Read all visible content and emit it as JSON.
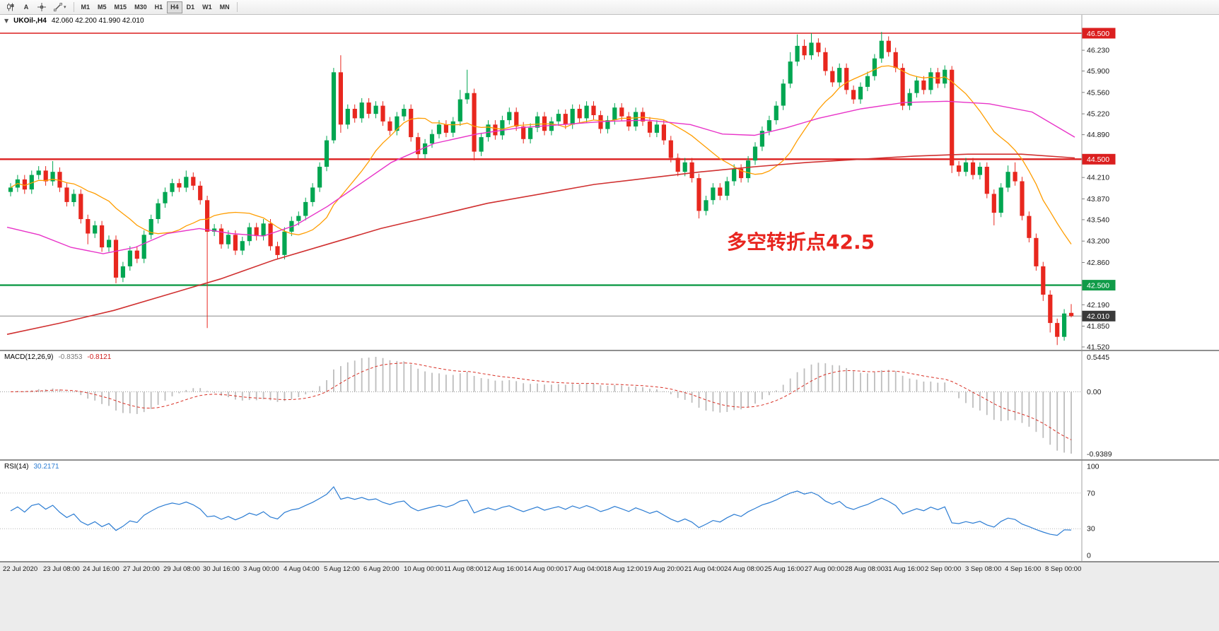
{
  "toolbar": {
    "text_tool_label": "A",
    "timeframes": [
      "M1",
      "M5",
      "M15",
      "M30",
      "H1",
      "H4",
      "D1",
      "W1",
      "MN"
    ],
    "active_timeframe": "H4"
  },
  "chart": {
    "symbol_label": "UKOil-,H4",
    "ohlc_label": "42.060 42.200 41.990 42.010",
    "price_axis": {
      "values": [
        46.23,
        45.9,
        45.56,
        45.22,
        44.89,
        44.21,
        43.87,
        43.54,
        43.2,
        42.86,
        42.19,
        41.85,
        41.52
      ],
      "badges": [
        {
          "price": 46.5,
          "label": "46.500",
          "bg": "#db1f1f"
        },
        {
          "price": 44.5,
          "label": "44.500",
          "bg": "#db1f1f"
        },
        {
          "price": 42.5,
          "label": "42.500",
          "bg": "#109b48"
        },
        {
          "price": 42.01,
          "label": "42.010",
          "bg": "#3a3a3a"
        }
      ]
    }
  },
  "macd": {
    "name": "MACD(12,26,9)",
    "main_value": "-0.8353",
    "signal_value": "-0.8121",
    "axis_max": "0.5445",
    "axis_zero": "0.00",
    "axis_min": "-0.9389"
  },
  "rsi": {
    "name": "RSI(14)",
    "value": "30.2171",
    "levels": [
      70,
      30
    ],
    "axis_labels": [
      100,
      70,
      30,
      0
    ]
  },
  "time_axis": {
    "labels": [
      "22 Jul 2020",
      "23 Jul 08:00",
      "24 Jul 16:00",
      "27 Jul 20:00",
      "29 Jul 08:00",
      "30 Jul 16:00",
      "3 Aug 00:00",
      "4 Aug 04:00",
      "5 Aug 12:00",
      "6 Aug 20:00",
      "10 Aug 00:00",
      "11 Aug 08:00",
      "12 Aug 16:00",
      "14 Aug 00:00",
      "17 Aug 04:00",
      "18 Aug 12:00",
      "19 Aug 20:00",
      "21 Aug 04:00",
      "24 Aug 08:00",
      "25 Aug 16:00",
      "27 Aug 00:00",
      "28 Aug 08:00",
      "31 Aug 16:00",
      "2 Sep 00:00",
      "3 Sep 08:00",
      "4 Sep 16:00",
      "8 Sep 00:00"
    ]
  },
  "chart_data": {
    "type": "candlestick",
    "symbol": "UKOil-",
    "timeframe": "H4",
    "title": "UKOil-,H4 42.060 42.200 41.990 42.010",
    "current": {
      "open": 42.06,
      "high": 42.2,
      "low": 41.99,
      "close": 42.01
    },
    "current_price": 42.01,
    "view": {
      "price_top": 46.792,
      "price_bottom": 41.475
    },
    "colors": {
      "up": "#00a651",
      "down": "#e8271e",
      "macd_hist": "#bdbdbd",
      "macd_signal": "#d93025",
      "rsi": "#2b7cd3"
    },
    "hlines": [
      {
        "price": 46.5,
        "color": "#db1f1f",
        "width": 1.6,
        "label": "46.500"
      },
      {
        "price": 44.5,
        "color": "#db1f1f",
        "width": 2.4,
        "label": "44.500"
      },
      {
        "price": 42.5,
        "color": "#109b48",
        "width": 2.4,
        "label": "42.500"
      }
    ],
    "annotation": {
      "text": "多空转折点42.5",
      "color": "#e8251f",
      "x_frac": 0.672,
      "price": 43.08,
      "font_size": 28
    },
    "ma": {
      "fast_period": 14,
      "fast_color": "#ff9d00",
      "mid_color": "#e833c8",
      "slow_color": "#d03030",
      "mid_points": [
        [
          0,
          43.42
        ],
        [
          0.03,
          43.3
        ],
        [
          0.06,
          43.1
        ],
        [
          0.09,
          43.0
        ],
        [
          0.12,
          43.1
        ],
        [
          0.15,
          43.32
        ],
        [
          0.18,
          43.4
        ],
        [
          0.21,
          43.32
        ],
        [
          0.24,
          43.28
        ],
        [
          0.27,
          43.45
        ],
        [
          0.3,
          43.75
        ],
        [
          0.33,
          44.1
        ],
        [
          0.36,
          44.45
        ],
        [
          0.4,
          44.75
        ],
        [
          0.44,
          44.9
        ],
        [
          0.48,
          45.0
        ],
        [
          0.52,
          45.05
        ],
        [
          0.56,
          45.1
        ],
        [
          0.6,
          45.12
        ],
        [
          0.64,
          45.05
        ],
        [
          0.67,
          44.9
        ],
        [
          0.7,
          44.88
        ],
        [
          0.73,
          45.0
        ],
        [
          0.76,
          45.15
        ],
        [
          0.8,
          45.3
        ],
        [
          0.84,
          45.4
        ],
        [
          0.88,
          45.42
        ],
        [
          0.92,
          45.38
        ],
        [
          0.96,
          45.25
        ],
        [
          1,
          44.85
        ]
      ],
      "slow_points": [
        [
          0,
          41.72
        ],
        [
          0.05,
          41.9
        ],
        [
          0.1,
          42.1
        ],
        [
          0.15,
          42.35
        ],
        [
          0.2,
          42.6
        ],
        [
          0.25,
          42.9
        ],
        [
          0.3,
          43.15
        ],
        [
          0.35,
          43.4
        ],
        [
          0.4,
          43.6
        ],
        [
          0.45,
          43.8
        ],
        [
          0.5,
          43.95
        ],
        [
          0.55,
          44.1
        ],
        [
          0.6,
          44.2
        ],
        [
          0.65,
          44.3
        ],
        [
          0.7,
          44.38
        ],
        [
          0.75,
          44.45
        ],
        [
          0.8,
          44.5
        ],
        [
          0.85,
          44.55
        ],
        [
          0.9,
          44.58
        ],
        [
          0.95,
          44.58
        ],
        [
          1,
          44.52
        ]
      ]
    },
    "indicators": {
      "macd_params": [
        12,
        26,
        9
      ],
      "rsi_period": 14
    },
    "candles": [
      [
        43.98,
        44.12,
        43.91,
        44.05
      ],
      [
        44.05,
        44.25,
        43.98,
        44.18
      ],
      [
        44.18,
        44.25,
        43.95,
        44.02
      ],
      [
        44.02,
        44.32,
        43.95,
        44.25
      ],
      [
        44.25,
        44.39,
        44.18,
        44.32
      ],
      [
        44.32,
        44.39,
        44.08,
        44.15
      ],
      [
        44.15,
        44.47,
        44.08,
        44.3
      ],
      [
        44.3,
        44.37,
        43.98,
        44.05
      ],
      [
        44.05,
        44.12,
        43.75,
        43.82
      ],
      [
        43.82,
        44.02,
        43.75,
        43.95
      ],
      [
        43.95,
        44.02,
        43.48,
        43.55
      ],
      [
        43.55,
        43.62,
        43.15,
        43.32
      ],
      [
        43.32,
        43.52,
        43.25,
        43.45
      ],
      [
        43.45,
        43.52,
        43.03,
        43.1
      ],
      [
        43.1,
        43.29,
        43.03,
        43.22
      ],
      [
        43.22,
        43.29,
        42.53,
        42.62
      ],
      [
        42.62,
        42.87,
        42.55,
        42.8
      ],
      [
        42.8,
        43.12,
        42.73,
        43.05
      ],
      [
        43.05,
        43.12,
        42.85,
        42.92
      ],
      [
        42.92,
        43.37,
        42.85,
        43.3
      ],
      [
        43.3,
        43.62,
        43.23,
        43.55
      ],
      [
        43.55,
        43.87,
        43.48,
        43.8
      ],
      [
        43.8,
        44.05,
        43.73,
        43.98
      ],
      [
        43.98,
        44.19,
        43.91,
        44.12
      ],
      [
        44.12,
        44.19,
        43.98,
        44.05
      ],
      [
        44.05,
        44.32,
        43.98,
        44.22
      ],
      [
        44.22,
        44.29,
        44.01,
        44.08
      ],
      [
        44.08,
        44.15,
        43.78,
        43.85
      ],
      [
        43.85,
        43.92,
        41.82,
        43.35
      ],
      [
        43.35,
        43.47,
        43.28,
        43.4
      ],
      [
        43.4,
        43.47,
        43.08,
        43.15
      ],
      [
        43.15,
        43.37,
        43.08,
        43.3
      ],
      [
        43.3,
        43.37,
        42.98,
        43.05
      ],
      [
        43.05,
        43.27,
        42.98,
        43.2
      ],
      [
        43.2,
        43.49,
        43.13,
        43.42
      ],
      [
        43.42,
        43.49,
        43.21,
        43.28
      ],
      [
        43.28,
        43.55,
        43.21,
        43.48
      ],
      [
        43.48,
        43.55,
        43.05,
        43.12
      ],
      [
        43.12,
        43.19,
        42.91,
        42.98
      ],
      [
        42.98,
        43.42,
        42.91,
        43.35
      ],
      [
        43.35,
        43.59,
        43.28,
        43.52
      ],
      [
        43.52,
        43.67,
        43.45,
        43.6
      ],
      [
        43.6,
        43.89,
        43.53,
        43.82
      ],
      [
        43.82,
        44.12,
        43.75,
        44.05
      ],
      [
        44.05,
        44.45,
        43.98,
        44.38
      ],
      [
        44.38,
        44.87,
        44.31,
        44.8
      ],
      [
        44.8,
        45.95,
        44.75,
        45.88
      ],
      [
        45.88,
        46.15,
        44.92,
        45.05
      ],
      [
        45.05,
        45.37,
        44.98,
        45.3
      ],
      [
        45.3,
        45.37,
        45.08,
        45.15
      ],
      [
        45.15,
        45.47,
        45.08,
        45.4
      ],
      [
        45.4,
        45.47,
        45.15,
        45.22
      ],
      [
        45.22,
        45.42,
        45.15,
        45.35
      ],
      [
        45.35,
        45.42,
        45.03,
        45.1
      ],
      [
        45.1,
        45.17,
        44.88,
        44.95
      ],
      [
        44.95,
        45.25,
        44.88,
        45.18
      ],
      [
        45.18,
        45.37,
        45.11,
        45.3
      ],
      [
        45.3,
        45.37,
        44.78,
        44.85
      ],
      [
        44.85,
        44.92,
        44.5,
        44.58
      ],
      [
        44.58,
        44.82,
        44.51,
        44.75
      ],
      [
        44.75,
        44.97,
        44.68,
        44.9
      ],
      [
        44.9,
        45.12,
        44.83,
        45.05
      ],
      [
        45.05,
        45.12,
        44.85,
        44.92
      ],
      [
        44.92,
        45.17,
        44.85,
        45.1
      ],
      [
        45.1,
        45.6,
        45.03,
        45.45
      ],
      [
        45.45,
        45.92,
        45.38,
        45.55
      ],
      [
        45.55,
        45.62,
        44.48,
        44.62
      ],
      [
        44.62,
        44.92,
        44.55,
        44.85
      ],
      [
        44.85,
        45.12,
        44.78,
        45.05
      ],
      [
        45.05,
        45.12,
        44.81,
        44.88
      ],
      [
        44.88,
        45.19,
        44.81,
        45.12
      ],
      [
        45.12,
        45.32,
        45.05,
        45.25
      ],
      [
        45.25,
        45.32,
        44.95,
        45.02
      ],
      [
        45.02,
        45.09,
        44.75,
        44.82
      ],
      [
        44.82,
        45.07,
        44.75,
        45.0
      ],
      [
        45.0,
        45.25,
        44.93,
        45.18
      ],
      [
        45.18,
        45.25,
        44.88,
        44.95
      ],
      [
        44.95,
        45.17,
        44.88,
        45.1
      ],
      [
        45.1,
        45.29,
        45.03,
        45.22
      ],
      [
        45.22,
        45.29,
        44.98,
        45.05
      ],
      [
        45.05,
        45.37,
        44.98,
        45.3
      ],
      [
        45.3,
        45.37,
        45.08,
        45.15
      ],
      [
        45.15,
        45.42,
        45.08,
        45.35
      ],
      [
        45.35,
        45.42,
        45.13,
        45.2
      ],
      [
        45.2,
        45.27,
        44.91,
        44.98
      ],
      [
        44.98,
        45.19,
        44.91,
        45.12
      ],
      [
        45.12,
        45.39,
        45.05,
        45.32
      ],
      [
        45.32,
        45.39,
        45.11,
        45.18
      ],
      [
        45.18,
        45.25,
        44.95,
        45.02
      ],
      [
        45.02,
        45.32,
        44.95,
        45.25
      ],
      [
        45.25,
        45.32,
        45.03,
        45.1
      ],
      [
        45.1,
        45.17,
        44.85,
        44.92
      ],
      [
        44.92,
        45.12,
        44.85,
        45.05
      ],
      [
        45.05,
        45.12,
        44.73,
        44.8
      ],
      [
        44.8,
        44.87,
        44.45,
        44.52
      ],
      [
        44.52,
        44.59,
        44.23,
        44.3
      ],
      [
        44.3,
        44.52,
        44.23,
        44.45
      ],
      [
        44.45,
        44.52,
        44.13,
        44.2
      ],
      [
        44.2,
        44.27,
        43.56,
        43.68
      ],
      [
        43.68,
        43.92,
        43.61,
        43.85
      ],
      [
        43.85,
        44.12,
        43.78,
        44.05
      ],
      [
        44.05,
        44.12,
        43.85,
        43.92
      ],
      [
        43.92,
        44.22,
        43.85,
        44.15
      ],
      [
        44.15,
        44.42,
        44.08,
        44.35
      ],
      [
        44.35,
        44.42,
        44.13,
        44.2
      ],
      [
        44.2,
        44.55,
        44.13,
        44.48
      ],
      [
        44.48,
        44.77,
        44.41,
        44.7
      ],
      [
        44.7,
        45.02,
        44.63,
        44.95
      ],
      [
        44.95,
        45.19,
        44.88,
        45.12
      ],
      [
        45.12,
        45.42,
        45.05,
        45.35
      ],
      [
        45.35,
        45.77,
        45.28,
        45.7
      ],
      [
        45.7,
        46.2,
        45.63,
        46.05
      ],
      [
        46.05,
        46.48,
        45.98,
        46.3
      ],
      [
        46.3,
        46.4,
        46.08,
        46.15
      ],
      [
        46.15,
        46.5,
        46.08,
        46.35
      ],
      [
        46.35,
        46.42,
        46.13,
        46.2
      ],
      [
        46.2,
        46.27,
        45.83,
        45.9
      ],
      [
        45.9,
        45.97,
        45.65,
        45.72
      ],
      [
        45.72,
        46.02,
        45.65,
        45.95
      ],
      [
        45.95,
        46.02,
        45.53,
        45.6
      ],
      [
        45.6,
        45.67,
        45.38,
        45.45
      ],
      [
        45.45,
        45.72,
        45.38,
        45.65
      ],
      [
        45.65,
        45.89,
        45.58,
        45.82
      ],
      [
        45.82,
        46.17,
        45.75,
        46.1
      ],
      [
        46.1,
        46.52,
        46.03,
        46.38
      ],
      [
        46.38,
        46.45,
        46.13,
        46.2
      ],
      [
        46.2,
        46.27,
        45.88,
        45.95
      ],
      [
        45.95,
        46.02,
        45.28,
        45.35
      ],
      [
        45.35,
        45.62,
        45.28,
        45.55
      ],
      [
        45.55,
        45.82,
        45.48,
        45.75
      ],
      [
        45.75,
        45.82,
        45.53,
        45.6
      ],
      [
        45.6,
        45.95,
        45.53,
        45.88
      ],
      [
        45.88,
        45.95,
        45.63,
        45.7
      ],
      [
        45.7,
        45.99,
        45.63,
        45.92
      ],
      [
        45.92,
        45.98,
        44.28,
        44.4
      ],
      [
        44.4,
        44.47,
        44.23,
        44.3
      ],
      [
        44.3,
        44.52,
        44.23,
        44.45
      ],
      [
        44.45,
        44.52,
        44.18,
        44.25
      ],
      [
        44.25,
        44.45,
        44.18,
        44.38
      ],
      [
        44.38,
        44.45,
        43.88,
        43.95
      ],
      [
        43.95,
        44.02,
        43.45,
        43.65
      ],
      [
        43.65,
        44.12,
        43.58,
        44.05
      ],
      [
        44.05,
        44.4,
        43.98,
        44.3
      ],
      [
        44.3,
        44.45,
        44.08,
        44.15
      ],
      [
        44.15,
        44.22,
        43.53,
        43.6
      ],
      [
        43.6,
        43.67,
        43.18,
        43.25
      ],
      [
        43.25,
        43.32,
        42.73,
        42.8
      ],
      [
        42.8,
        42.87,
        42.25,
        42.35
      ],
      [
        42.35,
        42.42,
        41.75,
        41.9
      ],
      [
        41.9,
        41.97,
        41.55,
        41.68
      ],
      [
        41.68,
        42.12,
        41.62,
        42.05
      ],
      [
        42.06,
        42.2,
        41.99,
        42.01
      ]
    ]
  }
}
